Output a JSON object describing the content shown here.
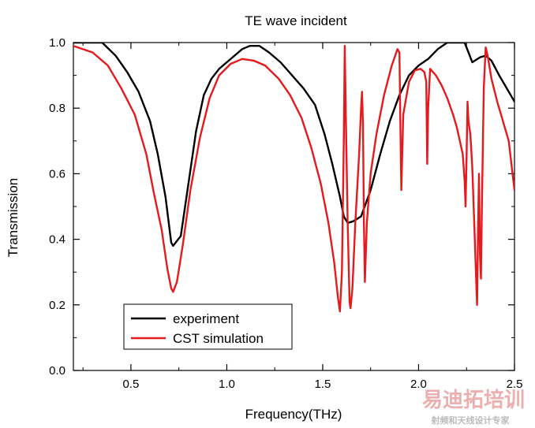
{
  "chart_data": {
    "type": "line",
    "title": "TE wave incident",
    "xlabel": "Frequency(THz)",
    "ylabel": "Transmission",
    "xlim": [
      0.2,
      2.5
    ],
    "ylim": [
      0.0,
      1.0
    ],
    "x_ticks": [
      "0.5",
      "1.0",
      "1.5",
      "2.0",
      "2.5"
    ],
    "y_ticks": [
      "0.0",
      "0.2",
      "0.4",
      "0.6",
      "0.8",
      "1.0"
    ],
    "legend_position": "bottom-left",
    "grid": false,
    "series": [
      {
        "name": "experiment",
        "color": "#000000",
        "points": [
          [
            0.2,
            1.0
          ],
          [
            0.28,
            1.0
          ],
          [
            0.35,
            1.0
          ],
          [
            0.42,
            0.96
          ],
          [
            0.48,
            0.91
          ],
          [
            0.54,
            0.85
          ],
          [
            0.6,
            0.76
          ],
          [
            0.64,
            0.66
          ],
          [
            0.68,
            0.53
          ],
          [
            0.71,
            0.39
          ],
          [
            0.72,
            0.38
          ],
          [
            0.74,
            0.395
          ],
          [
            0.76,
            0.41
          ],
          [
            0.8,
            0.57
          ],
          [
            0.84,
            0.73
          ],
          [
            0.88,
            0.84
          ],
          [
            0.92,
            0.89
          ],
          [
            0.96,
            0.92
          ],
          [
            1.0,
            0.94
          ],
          [
            1.04,
            0.96
          ],
          [
            1.08,
            0.98
          ],
          [
            1.12,
            0.99
          ],
          [
            1.17,
            0.99
          ],
          [
            1.22,
            0.97
          ],
          [
            1.28,
            0.94
          ],
          [
            1.34,
            0.9
          ],
          [
            1.4,
            0.86
          ],
          [
            1.46,
            0.81
          ],
          [
            1.51,
            0.72
          ],
          [
            1.55,
            0.63
          ],
          [
            1.59,
            0.53
          ],
          [
            1.61,
            0.47
          ],
          [
            1.63,
            0.45
          ],
          [
            1.66,
            0.455
          ],
          [
            1.7,
            0.47
          ],
          [
            1.75,
            0.55
          ],
          [
            1.8,
            0.66
          ],
          [
            1.85,
            0.76
          ],
          [
            1.9,
            0.84
          ],
          [
            1.95,
            0.9
          ],
          [
            2.0,
            0.93
          ],
          [
            2.05,
            0.95
          ],
          [
            2.1,
            0.98
          ],
          [
            2.15,
            1.0
          ],
          [
            2.2,
            1.0
          ],
          [
            2.24,
            1.0
          ],
          [
            2.26,
            0.97
          ],
          [
            2.28,
            0.94
          ],
          [
            2.32,
            0.955
          ],
          [
            2.35,
            0.96
          ],
          [
            2.38,
            0.945
          ],
          [
            2.42,
            0.9
          ],
          [
            2.46,
            0.86
          ],
          [
            2.5,
            0.82
          ]
        ]
      },
      {
        "name": "CST simulation",
        "color": "#e41a1c",
        "points": [
          [
            0.2,
            0.99
          ],
          [
            0.3,
            0.97
          ],
          [
            0.38,
            0.93
          ],
          [
            0.45,
            0.86
          ],
          [
            0.52,
            0.78
          ],
          [
            0.58,
            0.66
          ],
          [
            0.62,
            0.54
          ],
          [
            0.66,
            0.43
          ],
          [
            0.69,
            0.31
          ],
          [
            0.71,
            0.25
          ],
          [
            0.72,
            0.24
          ],
          [
            0.74,
            0.27
          ],
          [
            0.77,
            0.38
          ],
          [
            0.81,
            0.55
          ],
          [
            0.86,
            0.71
          ],
          [
            0.91,
            0.83
          ],
          [
            0.96,
            0.9
          ],
          [
            1.02,
            0.935
          ],
          [
            1.08,
            0.95
          ],
          [
            1.14,
            0.945
          ],
          [
            1.2,
            0.93
          ],
          [
            1.27,
            0.89
          ],
          [
            1.33,
            0.84
          ],
          [
            1.39,
            0.77
          ],
          [
            1.44,
            0.68
          ],
          [
            1.49,
            0.57
          ],
          [
            1.53,
            0.45
          ],
          [
            1.56,
            0.33
          ],
          [
            1.58,
            0.22
          ],
          [
            1.59,
            0.18
          ],
          [
            1.6,
            0.3
          ],
          [
            1.61,
            0.7
          ],
          [
            1.615,
            0.99
          ],
          [
            1.62,
            0.8
          ],
          [
            1.63,
            0.45
          ],
          [
            1.64,
            0.21
          ],
          [
            1.645,
            0.19
          ],
          [
            1.655,
            0.25
          ],
          [
            1.67,
            0.45
          ],
          [
            1.69,
            0.66
          ],
          [
            1.7,
            0.8
          ],
          [
            1.705,
            0.85
          ],
          [
            1.71,
            0.75
          ],
          [
            1.715,
            0.45
          ],
          [
            1.72,
            0.27
          ],
          [
            1.73,
            0.45
          ],
          [
            1.75,
            0.6
          ],
          [
            1.78,
            0.72
          ],
          [
            1.82,
            0.84
          ],
          [
            1.86,
            0.93
          ],
          [
            1.89,
            0.98
          ],
          [
            1.9,
            0.97
          ],
          [
            1.905,
            0.75
          ],
          [
            1.91,
            0.55
          ],
          [
            1.92,
            0.78
          ],
          [
            1.95,
            0.88
          ],
          [
            1.98,
            0.915
          ],
          [
            2.01,
            0.92
          ],
          [
            2.03,
            0.91
          ],
          [
            2.04,
            0.88
          ],
          [
            2.045,
            0.63
          ],
          [
            2.05,
            0.8
          ],
          [
            2.06,
            0.92
          ],
          [
            2.09,
            0.9
          ],
          [
            2.12,
            0.87
          ],
          [
            2.15,
            0.83
          ],
          [
            2.18,
            0.78
          ],
          [
            2.2,
            0.74
          ],
          [
            2.23,
            0.66
          ],
          [
            2.24,
            0.58
          ],
          [
            2.245,
            0.5
          ],
          [
            2.25,
            0.64
          ],
          [
            2.255,
            0.82
          ],
          [
            2.26,
            0.76
          ],
          [
            2.27,
            0.72
          ],
          [
            2.28,
            0.62
          ],
          [
            2.29,
            0.45
          ],
          [
            2.3,
            0.28
          ],
          [
            2.305,
            0.2
          ],
          [
            2.31,
            0.42
          ],
          [
            2.315,
            0.6
          ],
          [
            2.32,
            0.35
          ],
          [
            2.325,
            0.28
          ],
          [
            2.33,
            0.5
          ],
          [
            2.34,
            0.86
          ],
          [
            2.35,
            0.985
          ],
          [
            2.36,
            0.96
          ],
          [
            2.38,
            0.89
          ],
          [
            2.41,
            0.82
          ],
          [
            2.44,
            0.76
          ],
          [
            2.47,
            0.7
          ],
          [
            2.5,
            0.55
          ]
        ]
      }
    ]
  },
  "watermark": {
    "title": "易迪拓培训",
    "subtitle": "射频和天线设计专家"
  }
}
